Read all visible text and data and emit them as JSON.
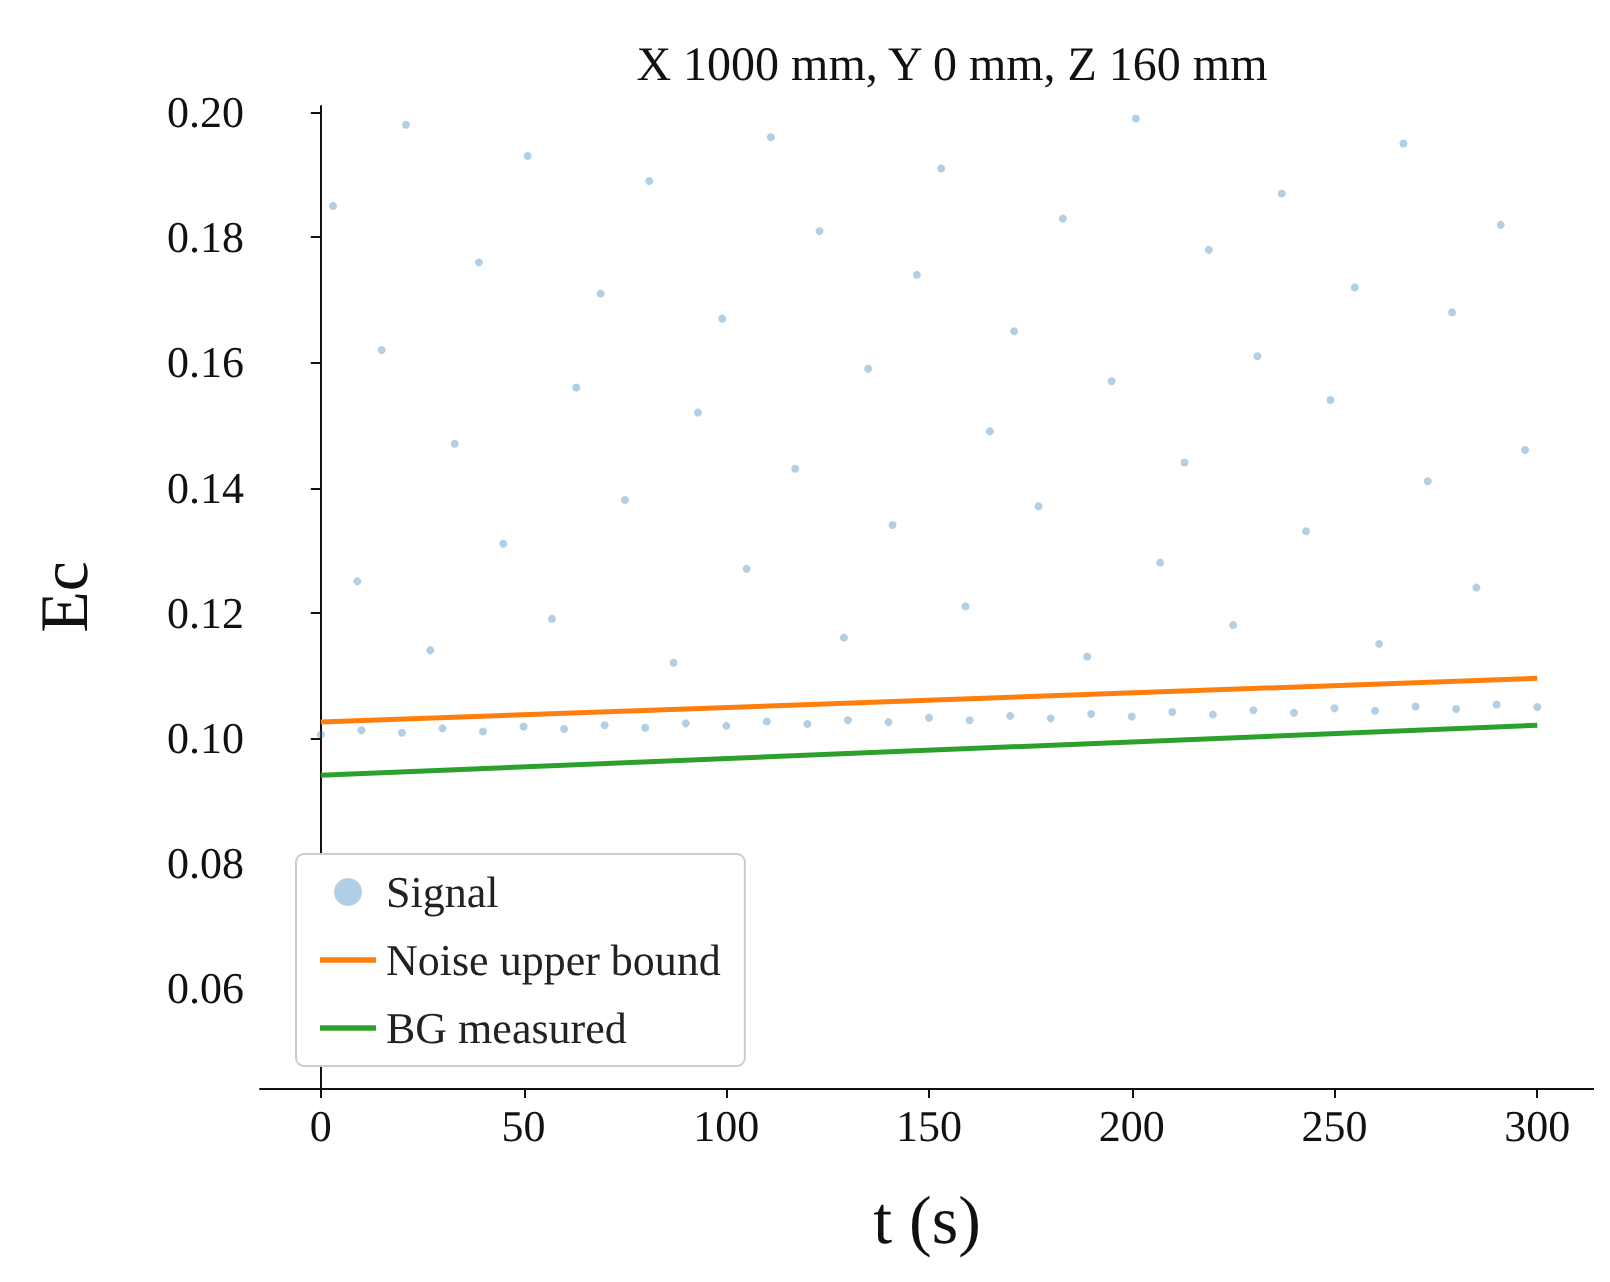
{
  "chart_data": {
    "type": "scatter",
    "title": "X 1000 mm, Y 0 mm, Z 160 mm",
    "xlabel": "t (s)",
    "ylabel": "Ec",
    "xlim": [
      -15,
      314
    ],
    "xticks": [
      0,
      50,
      100,
      150,
      200,
      250,
      300
    ],
    "ylim": [
      0.044,
      0.201
    ],
    "yticks": [
      0.06,
      0.08,
      {
        "value": 0.1,
        "label": "0.10"
      },
      0.12,
      0.14,
      0.16,
      0.18,
      {
        "value": 0.2,
        "label": "0.20"
      }
    ],
    "grid": false,
    "legend": "bottom left",
    "series": [
      {
        "name": "Signal",
        "color": "#1f77b4",
        "x": [
          0,
          10,
          20,
          30,
          40,
          50,
          60,
          70,
          80,
          90,
          100,
          110,
          120,
          130,
          140,
          150,
          160,
          170,
          180,
          190,
          200,
          210,
          220,
          230,
          240,
          250,
          260,
          270,
          280,
          290,
          300,
          3,
          9,
          15,
          21,
          27,
          33,
          39,
          45,
          51,
          57,
          63,
          69,
          75,
          81,
          87,
          93,
          99,
          105,
          111,
          117,
          123,
          129,
          135,
          141,
          147,
          153,
          159,
          165,
          171,
          177,
          183,
          189,
          195,
          201,
          207,
          213,
          219,
          225,
          231,
          237,
          243,
          249,
          255,
          261,
          267,
          273,
          279,
          285,
          291,
          297
        ],
        "values": [
          0.1005,
          0.1012,
          0.1008,
          0.1015,
          0.101,
          0.1018,
          0.1014,
          0.102,
          0.1016,
          0.1023,
          0.1019,
          0.1026,
          0.1022,
          0.1028,
          0.1025,
          0.1032,
          0.1028,
          0.1035,
          0.1031,
          0.1038,
          0.1034,
          0.1041,
          0.1037,
          0.1044,
          0.104,
          0.1047,
          0.1043,
          0.105,
          0.1046,
          0.1053,
          0.1049,
          0.185,
          0.125,
          0.162,
          0.198,
          0.114,
          0.147,
          0.176,
          0.131,
          0.193,
          0.119,
          0.156,
          0.171,
          0.138,
          0.189,
          0.112,
          0.152,
          0.167,
          0.127,
          0.196,
          0.143,
          0.181,
          0.116,
          0.159,
          0.134,
          0.174,
          0.191,
          0.121,
          0.149,
          0.165,
          0.137,
          0.183,
          0.113,
          0.157,
          0.199,
          0.128,
          0.144,
          0.178,
          0.118,
          0.161,
          0.187,
          0.133,
          0.154,
          0.172,
          0.115,
          0.195,
          0.141,
          0.168,
          0.124,
          0.182,
          0.146
        ]
      },
      {
        "name": "Noise upper bound",
        "type": "line",
        "color": "#ff7f0e",
        "x": [
          0,
          300
        ],
        "values": [
          0.1025,
          0.1095
        ]
      },
      {
        "name": "BG measured",
        "type": "line",
        "color": "#2ca02c",
        "x": [
          0,
          300
        ],
        "values": [
          0.094,
          0.102
        ]
      }
    ]
  }
}
